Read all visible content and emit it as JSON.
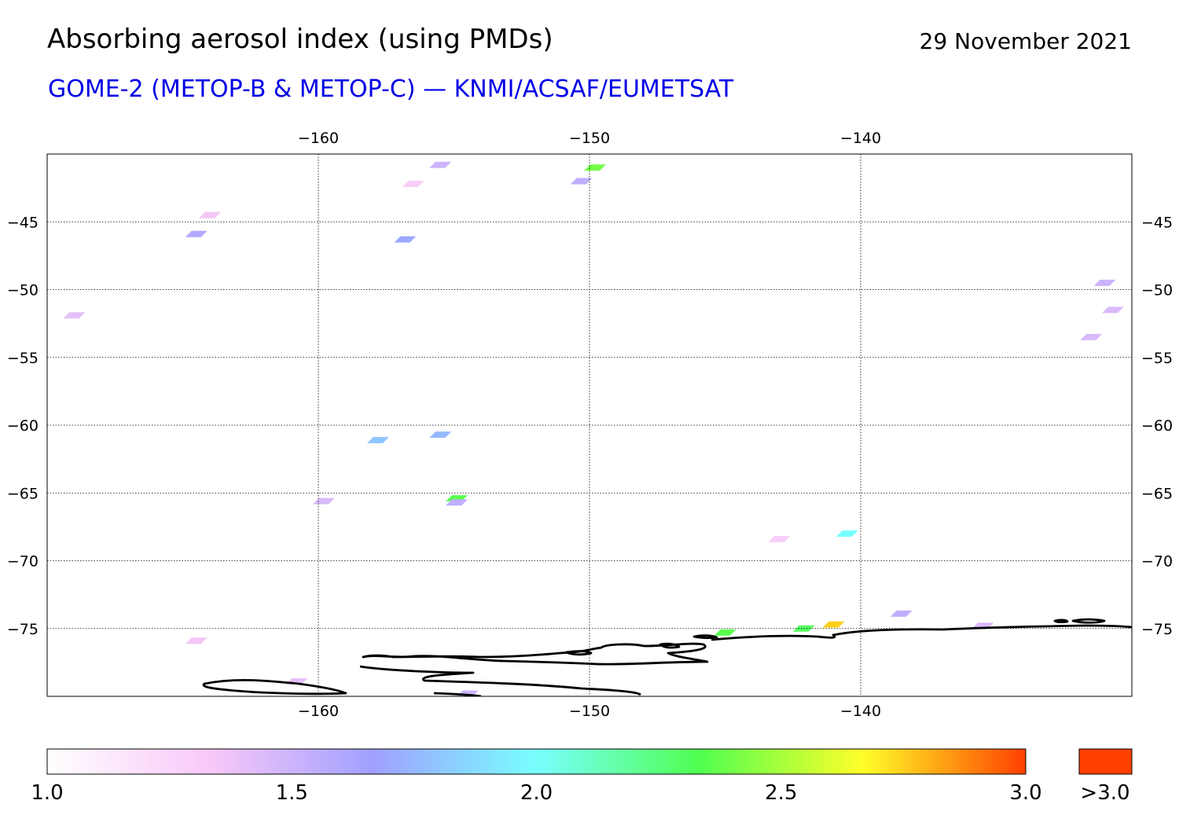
{
  "header": {
    "title": "Absorbing aerosol index (using PMDs)",
    "date": "29 November 2021",
    "subtitle": "GOME-2 (METOP-B & METOP-C) — KNMI/ACSAF/EUMETSAT"
  },
  "map": {
    "lon_range": [
      -170,
      -130
    ],
    "lat_range": [
      -80,
      -40
    ],
    "lon_ticks": [
      -160,
      -150,
      -140
    ],
    "lat_ticks": [
      -45,
      -50,
      -55,
      -60,
      -65,
      -70,
      -75
    ],
    "lon_tick_labels": [
      "−160",
      "−150",
      "−140"
    ],
    "lat_tick_labels": [
      "−45",
      "−50",
      "−55",
      "−60",
      "−65",
      "−70",
      "−75"
    ],
    "gridlines": "dotted",
    "coastline": "Antarctica (Ross Ice Shelf / Marie Byrd Land)",
    "aerosol_patches": [
      {
        "lon": -164.5,
        "lat": -45.9,
        "aai": 1.6
      },
      {
        "lon": -164.0,
        "lat": -44.5,
        "aai": 1.35
      },
      {
        "lon": -155.5,
        "lat": -40.8,
        "aai": 1.5
      },
      {
        "lon": -156.5,
        "lat": -42.2,
        "aai": 1.3
      },
      {
        "lon": -149.8,
        "lat": -41.0,
        "aai": 2.4
      },
      {
        "lon": -150.3,
        "lat": -42.0,
        "aai": 1.55
      },
      {
        "lon": -156.8,
        "lat": -46.3,
        "aai": 1.7
      },
      {
        "lon": -169.0,
        "lat": -51.9,
        "aai": 1.4
      },
      {
        "lon": -155.5,
        "lat": -60.7,
        "aai": 1.75
      },
      {
        "lon": -157.8,
        "lat": -61.1,
        "aai": 1.8
      },
      {
        "lon": -154.9,
        "lat": -65.4,
        "aai": 2.35
      },
      {
        "lon": -154.9,
        "lat": -65.7,
        "aai": 1.55
      },
      {
        "lon": -159.8,
        "lat": -65.6,
        "aai": 1.45
      },
      {
        "lon": -140.5,
        "lat": -68.0,
        "aai": 2.0
      },
      {
        "lon": -143.0,
        "lat": -68.4,
        "aai": 1.3
      },
      {
        "lon": -145.0,
        "lat": -75.3,
        "aai": 2.35
      },
      {
        "lon": -142.1,
        "lat": -75.0,
        "aai": 2.3
      },
      {
        "lon": -141.0,
        "lat": -74.7,
        "aai": 2.75
      },
      {
        "lon": -138.5,
        "lat": -73.9,
        "aai": 1.55
      },
      {
        "lon": -135.5,
        "lat": -74.8,
        "aai": 1.45
      },
      {
        "lon": -164.5,
        "lat": -75.9,
        "aai": 1.35
      },
      {
        "lon": -160.8,
        "lat": -78.9,
        "aai": 1.4
      },
      {
        "lon": -154.5,
        "lat": -79.8,
        "aai": 1.5
      },
      {
        "lon": -131.5,
        "lat": -53.5,
        "aai": 1.45
      },
      {
        "lon": -131.0,
        "lat": -49.5,
        "aai": 1.5
      },
      {
        "lon": -130.7,
        "lat": -51.5,
        "aai": 1.45
      }
    ]
  },
  "colorbar": {
    "colors": [
      "#ffffff",
      "#f8c8f8",
      "#a0a0ff",
      "#78ffff",
      "#50ff50",
      "#ffff28",
      "#ff4000"
    ],
    "over_color": "#ff4000",
    "ticks": [
      {
        "value": 1.0,
        "label": "1.0"
      },
      {
        "value": 1.5,
        "label": "1.5"
      },
      {
        "value": 2.0,
        "label": "2.0"
      },
      {
        "value": 2.5,
        "label": "2.5"
      },
      {
        "value": 3.0,
        "label": "3.0"
      }
    ],
    "over_label": ">3.0"
  }
}
